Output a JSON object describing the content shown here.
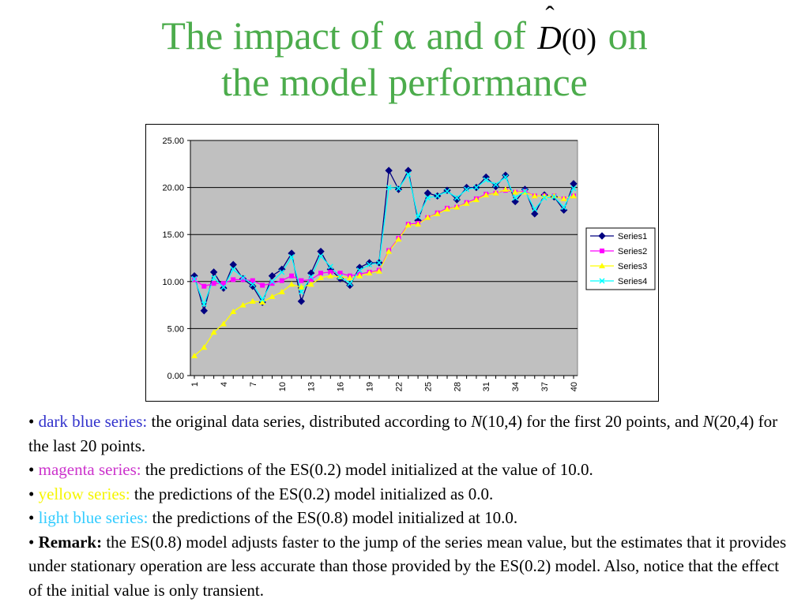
{
  "title": {
    "line1_a": "The impact of ",
    "alpha": "α",
    "line1_b": " and of ",
    "d_symbol": "D",
    "d_hat": "ˆ",
    "d_arg": "(0)",
    "line1_c": " on",
    "line2": "the model performance"
  },
  "colors": {
    "title": "#4cac4c",
    "plot_bg": "#c0c0c0",
    "series1": "#000080",
    "series2": "#ff00ff",
    "series3": "#ffff00",
    "series4": "#00ffff"
  },
  "chart_data": {
    "type": "line",
    "x": [
      1,
      2,
      3,
      4,
      5,
      6,
      7,
      8,
      9,
      10,
      11,
      12,
      13,
      14,
      15,
      16,
      17,
      18,
      19,
      20,
      21,
      22,
      23,
      24,
      25,
      26,
      27,
      28,
      29,
      30,
      31,
      32,
      33,
      34,
      35,
      36,
      37,
      38,
      39,
      40
    ],
    "x_tick_labels": [
      "1",
      "4",
      "7",
      "10",
      "13",
      "16",
      "19",
      "22",
      "25",
      "28",
      "31",
      "34",
      "37",
      "40"
    ],
    "y_tick_labels": [
      "0.00",
      "5.00",
      "10.00",
      "15.00",
      "20.00",
      "25.00"
    ],
    "ylim": [
      0,
      25
    ],
    "grid": "horizontal major gridlines",
    "legend_position": "right",
    "series": [
      {
        "name": "Series1",
        "marker": "diamond",
        "color": "#000080",
        "values": [
          10.6,
          6.9,
          11.0,
          9.3,
          11.8,
          10.3,
          9.5,
          7.8,
          10.6,
          11.3,
          13.0,
          7.9,
          10.9,
          13.2,
          11.3,
          10.3,
          9.6,
          11.5,
          12.0,
          12.0,
          21.8,
          19.8,
          21.8,
          16.5,
          19.4,
          19.1,
          19.7,
          18.7,
          20.0,
          20.0,
          21.1,
          20.1,
          21.3,
          18.5,
          19.8,
          17.2,
          19.2,
          19.0,
          17.6,
          20.4
        ]
      },
      {
        "name": "Series2",
        "marker": "square",
        "color": "#ff00ff",
        "values": [
          10.2,
          9.5,
          9.8,
          9.8,
          10.2,
          10.2,
          10.1,
          9.6,
          9.8,
          10.1,
          10.6,
          10.1,
          10.2,
          10.9,
          11.0,
          10.9,
          10.6,
          10.8,
          11.0,
          11.2,
          13.3,
          14.6,
          16.1,
          16.2,
          16.8,
          17.3,
          17.8,
          17.9,
          18.4,
          18.8,
          19.3,
          19.4,
          19.7,
          19.5,
          19.6,
          19.1,
          19.1,
          19.1,
          18.8,
          19.1
        ]
      },
      {
        "name": "Series3",
        "marker": "triangle",
        "color": "#ffff00",
        "values": [
          2.1,
          3.0,
          4.6,
          5.5,
          6.8,
          7.5,
          7.9,
          7.8,
          8.4,
          8.9,
          9.7,
          9.4,
          9.7,
          10.4,
          10.6,
          10.5,
          10.4,
          10.6,
          10.9,
          11.1,
          13.2,
          14.5,
          16.0,
          16.1,
          16.8,
          17.2,
          17.7,
          17.9,
          18.3,
          18.7,
          19.2,
          19.4,
          19.8,
          19.5,
          19.5,
          19.1,
          19.1,
          19.1,
          18.8,
          19.1
        ]
      },
      {
        "name": "Series4",
        "marker": "x",
        "color": "#00ffff",
        "values": [
          10.3,
          7.6,
          10.4,
          9.4,
          11.3,
          10.4,
          9.7,
          8.1,
          10.0,
          11.0,
          12.6,
          8.9,
          10.5,
          12.7,
          11.6,
          10.5,
          9.8,
          11.2,
          11.8,
          12.0,
          20.0,
          19.9,
          21.4,
          16.9,
          18.9,
          19.1,
          19.6,
          18.9,
          19.8,
          20.0,
          20.8,
          20.3,
          21.1,
          18.9,
          19.6,
          17.7,
          18.9,
          19.0,
          17.9,
          19.9
        ]
      }
    ]
  },
  "notes": {
    "n1_bullet": "• ",
    "n1_label": "dark blue series:",
    "n1_a": " the original data series, distributed according to ",
    "n1_N": "N",
    "n1_b": "(10,4) for the first 20 points, and ",
    "n1_N2": "N",
    "n1_c": "(20,4) for the last 20 points.",
    "n2_bullet": "• ",
    "n2_label": "magenta series:",
    "n2_text": " the predictions of the ES(0.2) model initialized at the value of 10.0.",
    "n3_bullet": "• ",
    "n3_label": "yellow series:",
    "n3_text": " the predictions of the ES(0.2) model initialized as 0.0.",
    "n4_bullet": "• ",
    "n4_label": "light blue series:",
    "n4_text": " the predictions of the ES(0.8) model initialized at 10.0.",
    "n5_bullet": "• ",
    "n5_label": "Remark:",
    "n5_text": " the ES(0.8) model adjusts faster to the jump of the series mean value, but the estimates that it provides under stationary operation are less accurate than those provided by the ES(0.2) model. Also, notice that the effect of the initial value is only transient."
  }
}
